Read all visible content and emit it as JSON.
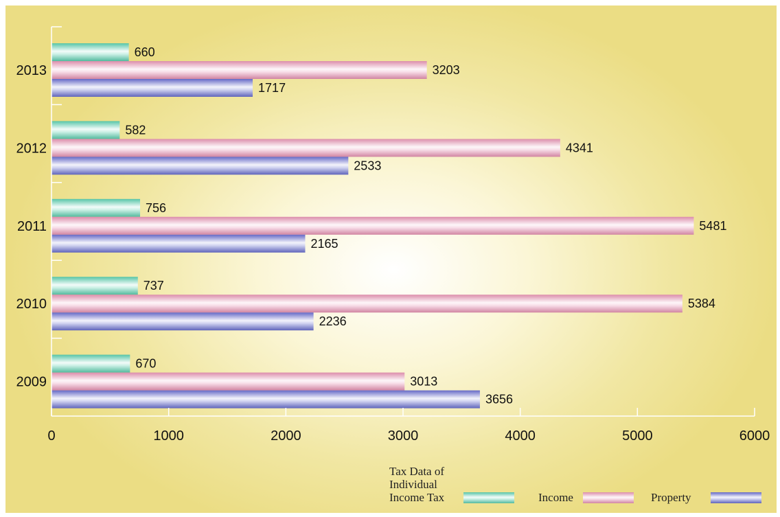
{
  "chart_data": {
    "type": "bar",
    "orientation": "horizontal",
    "categories": [
      "2009",
      "2010",
      "2011",
      "2012",
      "2013"
    ],
    "series": [
      {
        "name": "Tax Data of Individual Income Tax",
        "color": "#5ccfb0",
        "values": [
          670,
          737,
          756,
          582,
          660
        ]
      },
      {
        "name": "Income",
        "color": "#e894b4",
        "values": [
          3013,
          5384,
          5481,
          4341,
          3203
        ]
      },
      {
        "name": "Property",
        "color": "#6a6fd0",
        "values": [
          3656,
          2236,
          2165,
          2533,
          1717
        ]
      }
    ],
    "xlim": [
      0,
      6000
    ],
    "x_ticks": [
      "0",
      "1000",
      "2000",
      "3000",
      "4000",
      "5000",
      "6000"
    ],
    "grid": false,
    "legend_position": "bottom-right",
    "legend_labels": [
      [
        "Tax Data of",
        "Individual",
        "Income Tax"
      ],
      [
        "Income"
      ],
      [
        "Property"
      ]
    ]
  }
}
